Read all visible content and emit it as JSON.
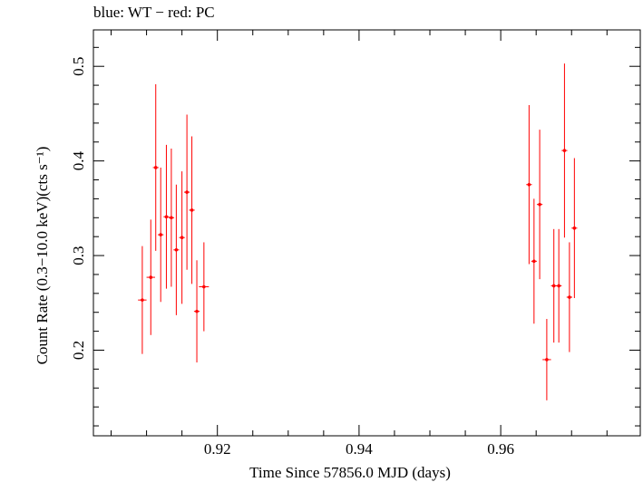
{
  "header": {
    "title": "blue: WT − red: PC"
  },
  "chart_data": {
    "type": "scatter",
    "title": "blue: WT − red: PC",
    "xlabel": "Time Since 57856.0 MJD (days)",
    "ylabel": "Count Rate (0.3−10.0 keV)(cts s⁻¹)",
    "xlim": [
      0.9025,
      0.9797
    ],
    "ylim": [
      0.1095,
      0.5385
    ],
    "x_ticks": [
      0.92,
      0.94,
      0.96
    ],
    "x_tick_labels": [
      "0.92",
      "0.94",
      "0.96"
    ],
    "y_ticks": [
      0.2,
      0.3,
      0.4,
      0.5
    ],
    "y_tick_labels": [
      "0.2",
      "0.3",
      "0.4",
      "0.5"
    ],
    "grid": false,
    "series": [
      {
        "color": "#ff0000",
        "points": [
          {
            "x": 0.9094,
            "xerr": 0.0006,
            "y": 0.253,
            "yerr_lo": 0.057,
            "yerr_hi": 0.057
          },
          {
            "x": 0.9106,
            "xerr": 0.0006,
            "y": 0.277,
            "yerr_lo": 0.061,
            "yerr_hi": 0.061
          },
          {
            "x": 0.9113,
            "xerr": 0.0004,
            "y": 0.393,
            "yerr_lo": 0.088,
            "yerr_hi": 0.088
          },
          {
            "x": 0.912,
            "xerr": 0.0004,
            "y": 0.322,
            "yerr_lo": 0.071,
            "yerr_hi": 0.071
          },
          {
            "x": 0.9128,
            "xerr": 0.0004,
            "y": 0.341,
            "yerr_lo": 0.076,
            "yerr_hi": 0.076
          },
          {
            "x": 0.9135,
            "xerr": 0.0004,
            "y": 0.34,
            "yerr_lo": 0.073,
            "yerr_hi": 0.073
          },
          {
            "x": 0.9142,
            "xerr": 0.0004,
            "y": 0.306,
            "yerr_lo": 0.069,
            "yerr_hi": 0.069
          },
          {
            "x": 0.915,
            "xerr": 0.0004,
            "y": 0.319,
            "yerr_lo": 0.07,
            "yerr_hi": 0.07
          },
          {
            "x": 0.9157,
            "xerr": 0.0004,
            "y": 0.367,
            "yerr_lo": 0.082,
            "yerr_hi": 0.082
          },
          {
            "x": 0.9164,
            "xerr": 0.0004,
            "y": 0.348,
            "yerr_lo": 0.078,
            "yerr_hi": 0.078
          },
          {
            "x": 0.9171,
            "xerr": 0.0004,
            "y": 0.241,
            "yerr_lo": 0.054,
            "yerr_hi": 0.054
          },
          {
            "x": 0.9181,
            "xerr": 0.0007,
            "y": 0.267,
            "yerr_lo": 0.047,
            "yerr_hi": 0.047
          },
          {
            "x": 0.964,
            "xerr": 0.0004,
            "y": 0.375,
            "yerr_lo": 0.084,
            "yerr_hi": 0.084
          },
          {
            "x": 0.9647,
            "xerr": 0.0004,
            "y": 0.294,
            "yerr_lo": 0.066,
            "yerr_hi": 0.066
          },
          {
            "x": 0.9655,
            "xerr": 0.0004,
            "y": 0.354,
            "yerr_lo": 0.079,
            "yerr_hi": 0.079
          },
          {
            "x": 0.9665,
            "xerr": 0.0006,
            "y": 0.19,
            "yerr_lo": 0.043,
            "yerr_hi": 0.043
          },
          {
            "x": 0.9675,
            "xerr": 0.0004,
            "y": 0.268,
            "yerr_lo": 0.06,
            "yerr_hi": 0.06
          },
          {
            "x": 0.9682,
            "xerr": 0.0004,
            "y": 0.268,
            "yerr_lo": 0.06,
            "yerr_hi": 0.06
          },
          {
            "x": 0.969,
            "xerr": 0.0004,
            "y": 0.411,
            "yerr_lo": 0.092,
            "yerr_hi": 0.092
          },
          {
            "x": 0.9697,
            "xerr": 0.0004,
            "y": 0.256,
            "yerr_lo": 0.058,
            "yerr_hi": 0.058
          },
          {
            "x": 0.9704,
            "xerr": 0.0004,
            "y": 0.329,
            "yerr_lo": 0.074,
            "yerr_hi": 0.074
          }
        ]
      }
    ]
  }
}
